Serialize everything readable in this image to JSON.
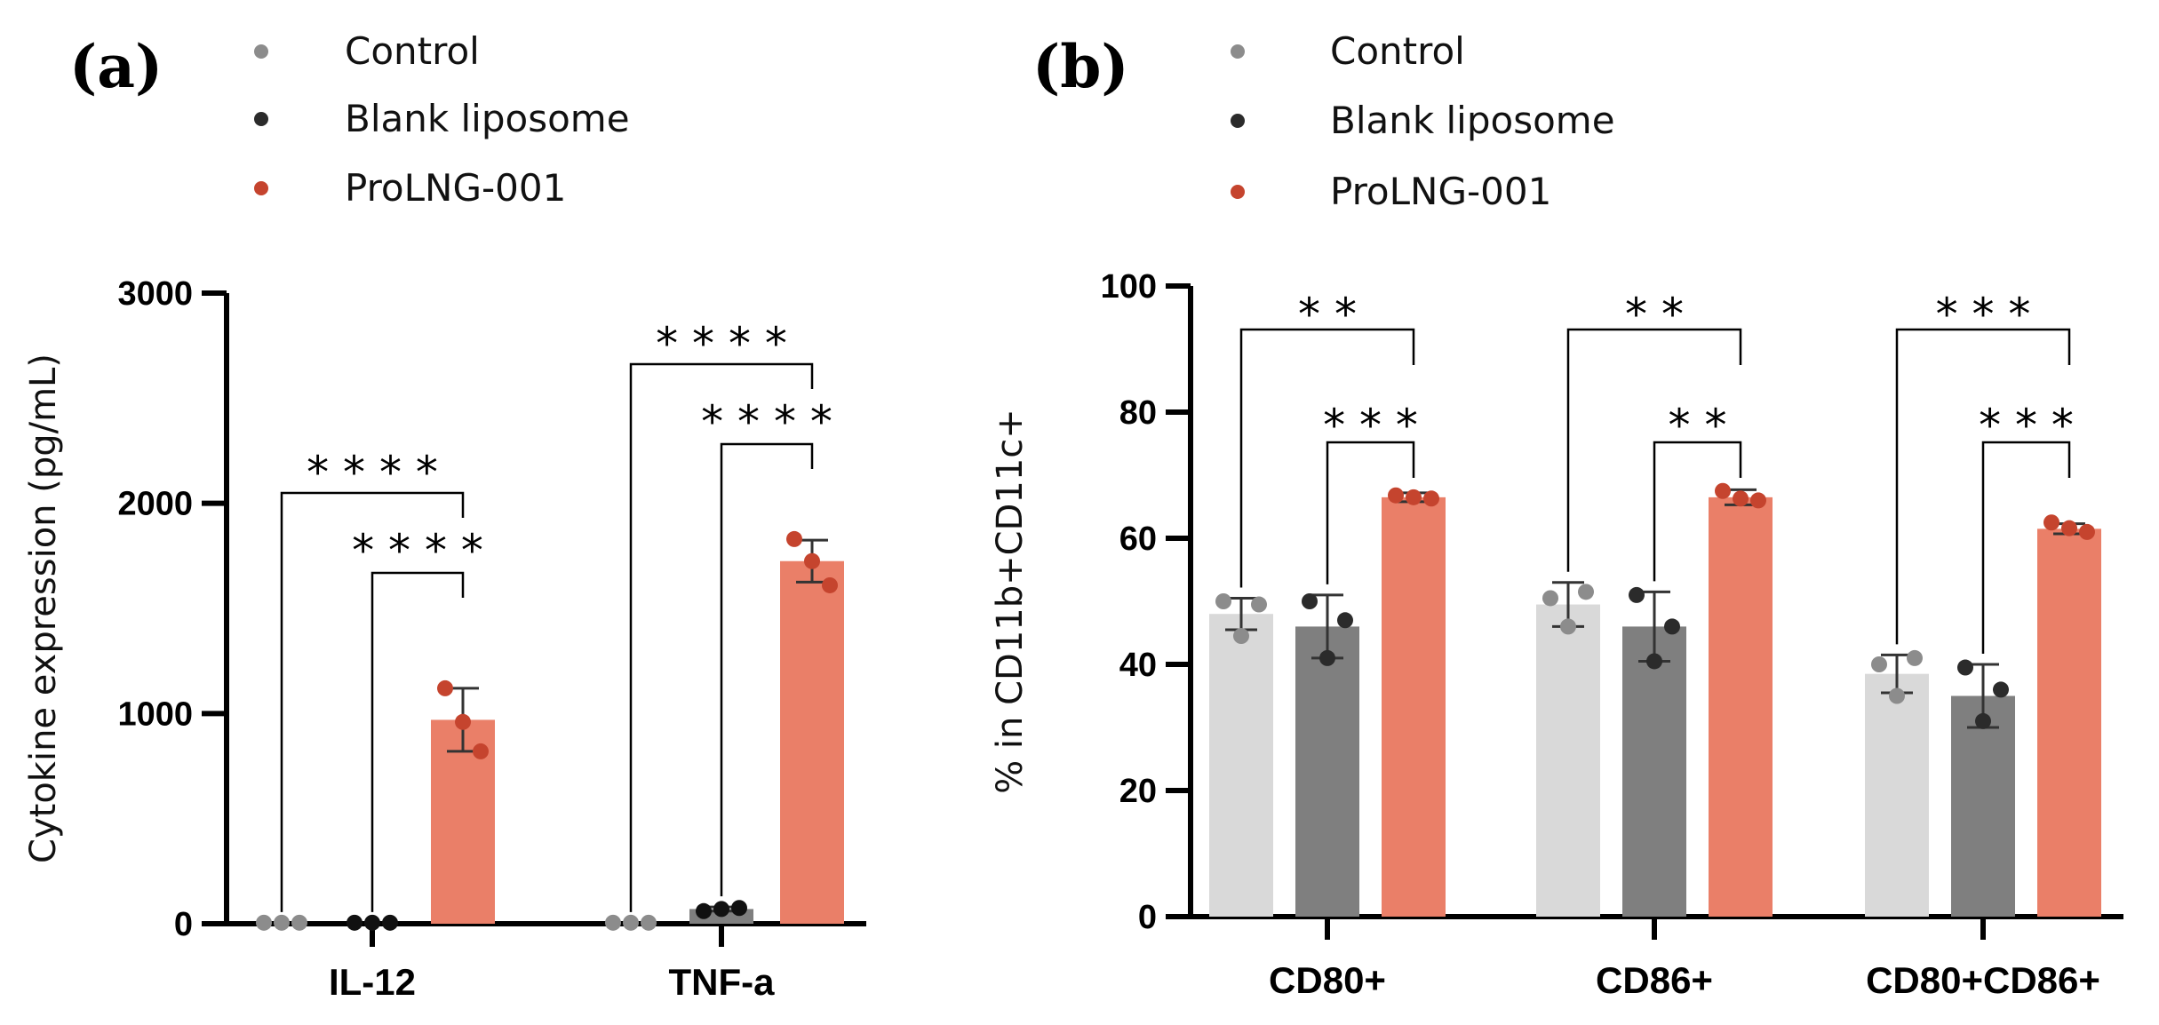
{
  "colors": {
    "control_bar": "#d9d9d9",
    "control_dot": "#8c8c8c",
    "blank_bar": "#7f7f7f",
    "blank_dot": "#2b2b2b",
    "prolng_bar": "#ea7f68",
    "prolng_dot": "#c5442e",
    "dark_dot_a": "#111111"
  },
  "chart_data": [
    {
      "panel": "(a)",
      "type": "bar",
      "ylabel": "Cytokine expression (pg/mL)",
      "ylim": [
        0,
        3000
      ],
      "yticks": [
        "0",
        "1000",
        "2000",
        "3000"
      ],
      "categories": [
        "IL-12",
        "TNF-a"
      ],
      "legend": [
        "Control",
        "Blank liposome",
        "ProLNG-001"
      ],
      "series": [
        {
          "name": "Control",
          "values": [
            5,
            5
          ],
          "err": [
            0,
            0
          ],
          "points": [
            [
              5,
              5,
              5
            ],
            [
              5,
              5,
              5
            ]
          ]
        },
        {
          "name": "Blank liposome",
          "values": [
            5,
            70
          ],
          "err": [
            0,
            10
          ],
          "points": [
            [
              5,
              5,
              5
            ],
            [
              60,
              75,
              70
            ]
          ]
        },
        {
          "name": "ProLNG-001",
          "values": [
            970,
            1725
          ],
          "err": [
            150,
            100
          ],
          "points": [
            [
              1120,
              820,
              960
            ],
            [
              1830,
              1610,
              1725
            ]
          ]
        }
      ],
      "annotations": [
        {
          "category": "IL-12",
          "from": "Control",
          "to": "ProLNG-001",
          "stars": "* * * *"
        },
        {
          "category": "IL-12",
          "from": "Blank liposome",
          "to": "ProLNG-001",
          "stars": "* * * *"
        },
        {
          "category": "TNF-a",
          "from": "Control",
          "to": "ProLNG-001",
          "stars": "* * * *"
        },
        {
          "category": "TNF-a",
          "from": "Blank liposome",
          "to": "ProLNG-001",
          "stars": "* * * *"
        }
      ]
    },
    {
      "panel": "(b)",
      "type": "bar",
      "ylabel": "% in CD11b+CD11c+",
      "ylim": [
        0,
        100
      ],
      "yticks": [
        "0",
        "20",
        "40",
        "60",
        "80",
        "100"
      ],
      "categories": [
        "CD80+",
        "CD86+",
        "CD80+CD86+"
      ],
      "legend": [
        "Control",
        "Blank liposome",
        "ProLNG-001"
      ],
      "series": [
        {
          "name": "Control",
          "values": [
            48,
            49.5,
            38.5
          ],
          "err": [
            2.5,
            3.5,
            3
          ],
          "points": [
            [
              50,
              49.5,
              44.5
            ],
            [
              50.5,
              51.5,
              46
            ],
            [
              40,
              41,
              35
            ]
          ]
        },
        {
          "name": "Blank liposome",
          "values": [
            46,
            46,
            35
          ],
          "err": [
            5,
            5.5,
            5
          ],
          "points": [
            [
              50,
              47,
              41
            ],
            [
              51,
              46,
              40.5
            ],
            [
              39.5,
              36,
              31
            ]
          ]
        },
        {
          "name": "ProLNG-001",
          "values": [
            66.5,
            66.5,
            61.5
          ],
          "err": [
            0.7,
            1.2,
            0.8
          ],
          "points": [
            [
              66.8,
              66.3,
              66.5
            ],
            [
              67.5,
              66,
              66.3
            ],
            [
              62.5,
              61,
              61.6
            ]
          ]
        }
      ],
      "annotations": [
        {
          "category": "CD80+",
          "from": "Control",
          "to": "ProLNG-001",
          "stars": "* *"
        },
        {
          "category": "CD80+",
          "from": "Blank liposome",
          "to": "ProLNG-001",
          "stars": "* * *"
        },
        {
          "category": "CD86+",
          "from": "Control",
          "to": "ProLNG-001",
          "stars": "* *"
        },
        {
          "category": "CD86+",
          "from": "Blank liposome",
          "to": "ProLNG-001",
          "stars": "* *"
        },
        {
          "category": "CD80+CD86+",
          "from": "Control",
          "to": "ProLNG-001",
          "stars": "* * *"
        },
        {
          "category": "CD80+CD86+",
          "from": "Blank liposome",
          "to": "ProLNG-001",
          "stars": "* * *"
        }
      ]
    }
  ]
}
